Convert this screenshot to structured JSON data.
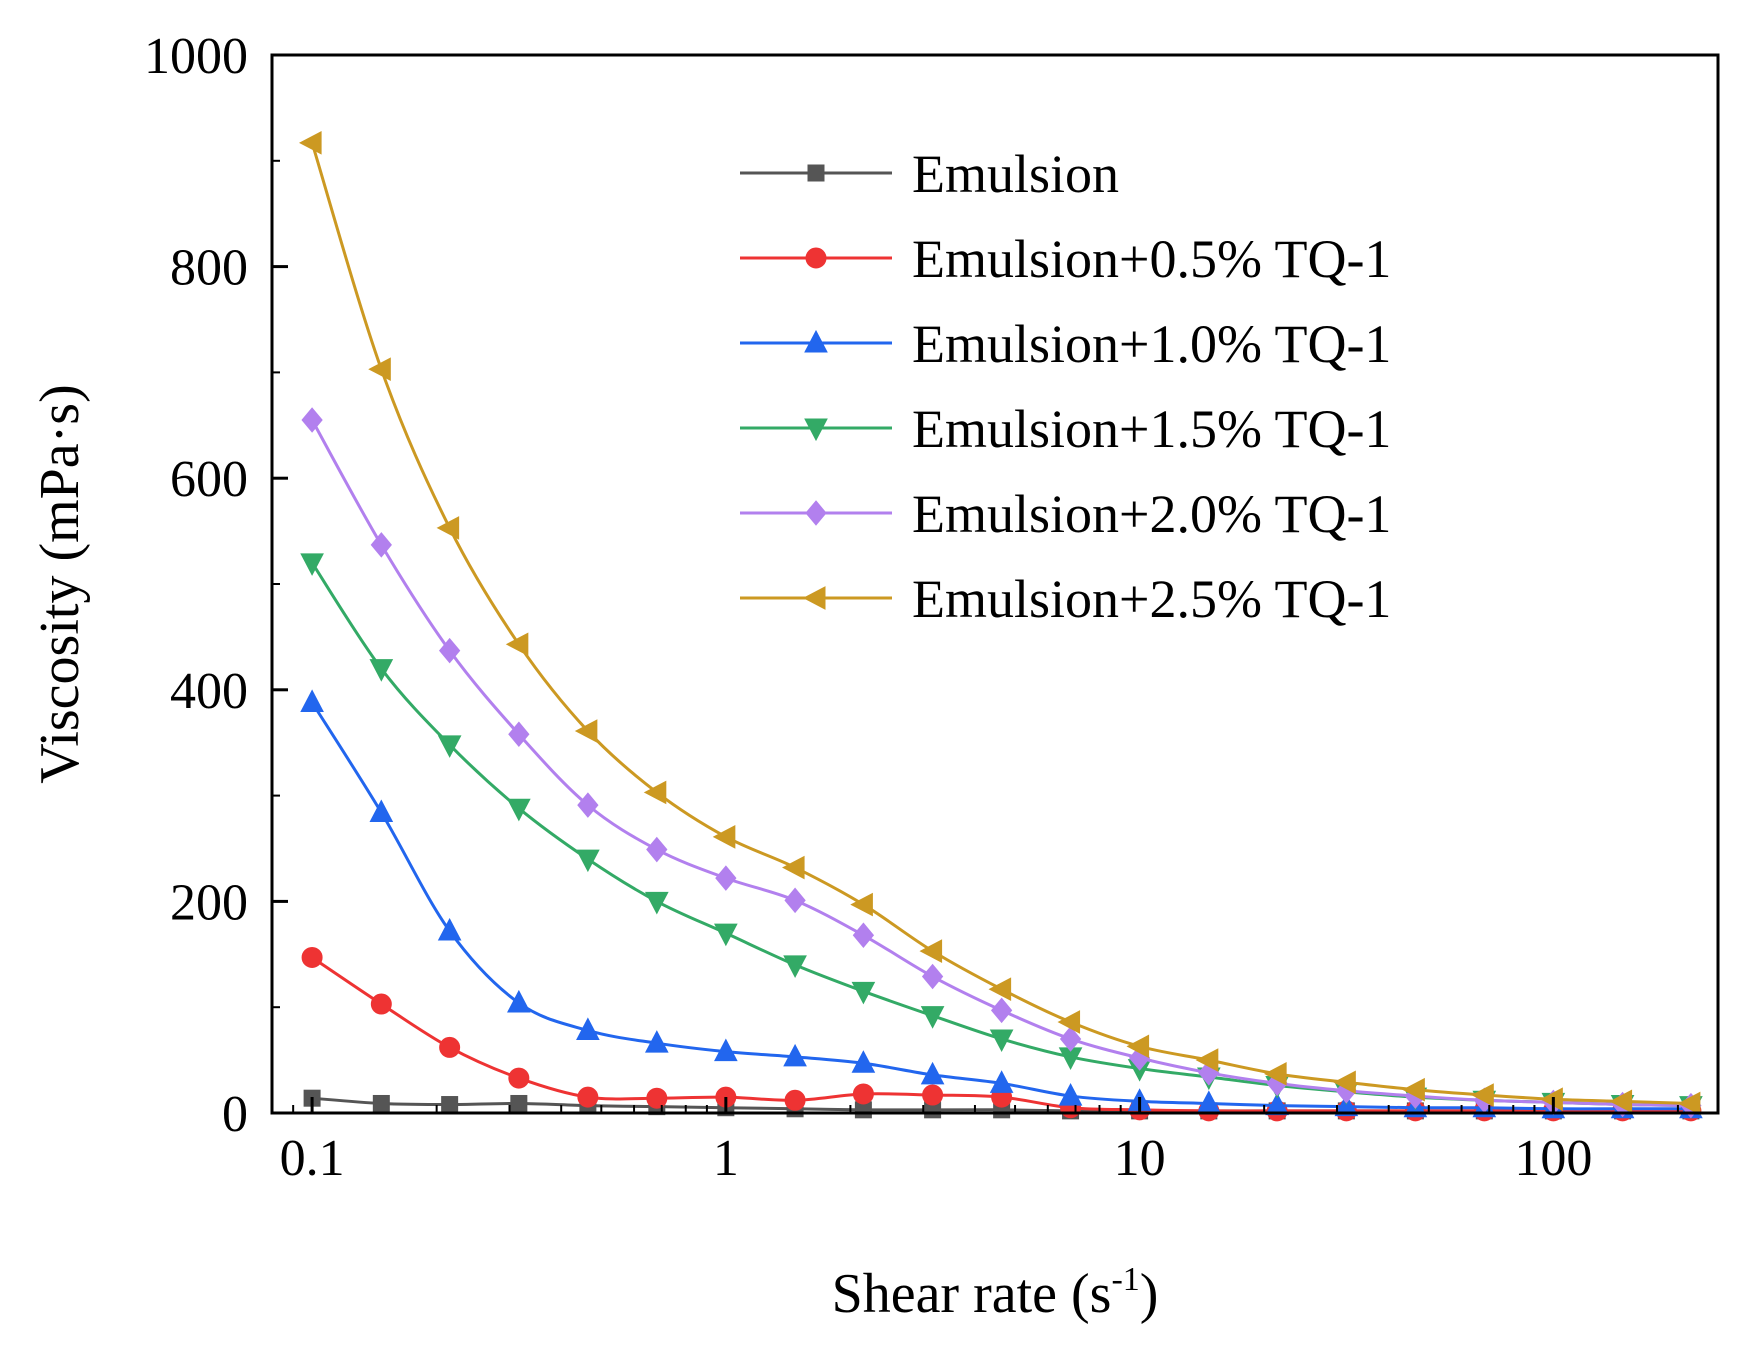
{
  "chart_data": {
    "type": "line",
    "title": "",
    "xlabel": "Shear rate (s",
    "xlabel_sup": "-1",
    "xlabel_end": ")",
    "ylabel": "Viscosity (mPa·s)",
    "xscale": "log",
    "xlim": [
      0.08,
      250
    ],
    "ylim": [
      0,
      1000
    ],
    "xticks": [
      0.1,
      1,
      10,
      100
    ],
    "xtick_labels": [
      "0.1",
      "1",
      "10",
      "100"
    ],
    "yticks": [
      0,
      200,
      400,
      600,
      800,
      1000
    ],
    "ytick_labels": [
      "0",
      "200",
      "400",
      "600",
      "800",
      "1000"
    ],
    "legend_position": "top-right",
    "grid": false,
    "x": [
      0.1,
      0.147,
      0.215,
      0.316,
      0.464,
      0.681,
      1.0,
      1.47,
      2.15,
      3.16,
      4.64,
      6.81,
      10.0,
      14.7,
      21.5,
      31.6,
      46.4,
      68.1,
      100,
      147,
      215
    ],
    "series": [
      {
        "name": "Emulsion",
        "color": "#555555",
        "marker": "square",
        "values": [
          14,
          9,
          8,
          9,
          7,
          6,
          5,
          4,
          3,
          3,
          3,
          2,
          2,
          2,
          2,
          2,
          2,
          2,
          2,
          2,
          2
        ]
      },
      {
        "name": "Emulsion+0.5% TQ-1",
        "color": "#ee3333",
        "marker": "circle",
        "values": [
          147,
          103,
          62,
          33,
          15,
          14,
          15,
          12,
          18,
          17,
          15,
          5,
          3,
          2,
          2,
          2,
          2,
          2,
          2,
          2,
          2
        ]
      },
      {
        "name": "Emulsion+1.0% TQ-1",
        "color": "#2266ee",
        "marker": "triangle-up",
        "values": [
          388,
          284,
          172,
          104,
          78,
          66,
          58,
          53,
          47,
          36,
          28,
          16,
          11,
          9,
          7,
          6,
          5,
          5,
          4,
          4,
          4
        ]
      },
      {
        "name": "Emulsion+1.5% TQ-1",
        "color": "#33aa66",
        "marker": "triangle-down",
        "values": [
          520,
          420,
          348,
          288,
          240,
          200,
          170,
          140,
          115,
          92,
          70,
          53,
          42,
          34,
          26,
          20,
          15,
          12,
          10,
          8,
          7
        ]
      },
      {
        "name": "Emulsion+2.0% TQ-1",
        "color": "#b280ee",
        "marker": "diamond",
        "values": [
          655,
          537,
          437,
          358,
          291,
          249,
          222,
          201,
          168,
          129,
          97,
          70,
          52,
          38,
          28,
          21,
          16,
          12,
          10,
          8,
          7
        ]
      },
      {
        "name": "Emulsion+2.5% TQ-1",
        "color": "#cc9922",
        "marker": "triangle-left",
        "values": [
          917,
          703,
          553,
          443,
          361,
          303,
          261,
          232,
          197,
          153,
          117,
          86,
          63,
          50,
          37,
          29,
          22,
          17,
          13,
          11,
          9
        ]
      }
    ]
  }
}
